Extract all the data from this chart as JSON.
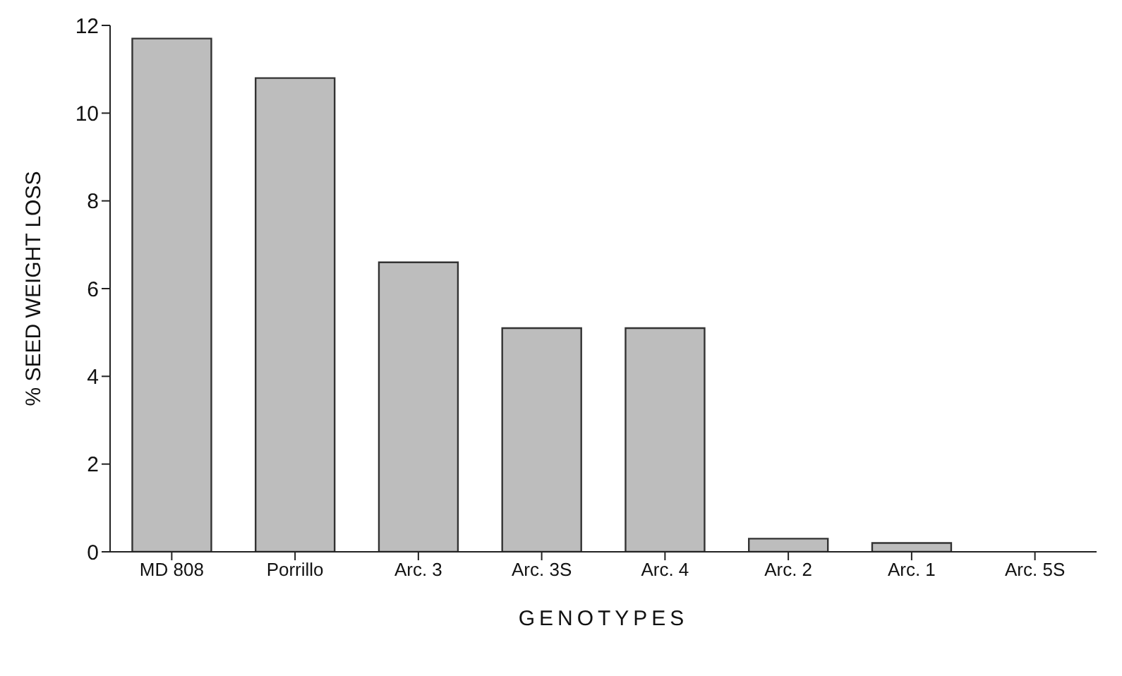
{
  "chart_data": {
    "type": "bar",
    "xlabel": "GENOTYPES",
    "ylabel": "% SEED WEIGHT LOSS",
    "categories": [
      "MD 808",
      "Porrillo",
      "Arc. 3",
      "Arc. 3S",
      "Arc. 4",
      "Arc. 2",
      "Arc. 1",
      "Arc. 5S"
    ],
    "values": [
      11.7,
      10.8,
      6.6,
      5.1,
      5.1,
      0.3,
      0.2,
      0
    ],
    "color": "#bdbdbd",
    "ylim": [
      0,
      12
    ],
    "yticks": [
      0,
      2,
      4,
      6,
      8,
      10,
      12
    ],
    "grid": false,
    "legend": false
  }
}
